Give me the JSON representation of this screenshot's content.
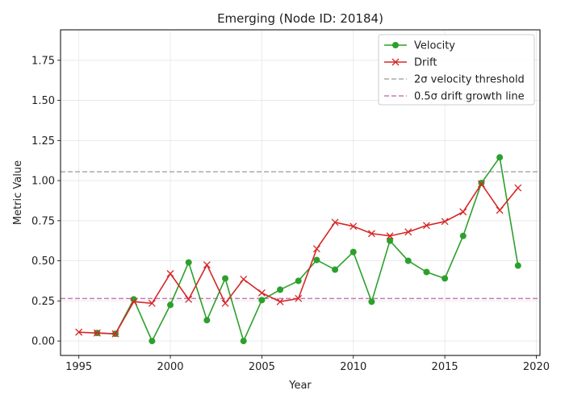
{
  "chart_data": {
    "type": "line",
    "title": "Emerging (Node ID: 20184)",
    "xlabel": "Year",
    "ylabel": "Metric Value",
    "xlim": [
      1994,
      2020.2
    ],
    "ylim": [
      -0.09,
      1.94
    ],
    "x_ticks": [
      1995,
      2000,
      2005,
      2010,
      2015,
      2020
    ],
    "y_ticks": [
      0.0,
      0.25,
      0.5,
      0.75,
      1.0,
      1.25,
      1.5,
      1.75
    ],
    "x_tick_labels": [
      "1995",
      "2000",
      "2005",
      "2010",
      "2015",
      "2020"
    ],
    "y_tick_labels": [
      "0.00",
      "0.25",
      "0.50",
      "0.75",
      "1.00",
      "1.25",
      "1.50",
      "1.75"
    ],
    "grid": true,
    "legend_position": "upper right",
    "series": [
      {
        "name": "Velocity",
        "color": "#2ca02c",
        "marker": "circle",
        "x": [
          1996,
          1997,
          1998,
          1999,
          2000,
          2001,
          2002,
          2003,
          2004,
          2005,
          2006,
          2007,
          2008,
          2009,
          2010,
          2011,
          2012,
          2013,
          2014,
          2015,
          2016,
          2017,
          2018,
          2019
        ],
        "y": [
          0.05,
          0.045,
          0.26,
          0.0,
          0.225,
          0.49,
          0.13,
          0.39,
          0.0,
          0.255,
          0.32,
          0.375,
          0.505,
          0.445,
          0.555,
          0.245,
          0.625,
          0.5,
          0.43,
          0.39,
          0.655,
          0.985,
          1.145,
          0.47
        ]
      },
      {
        "name": "Drift",
        "color": "#d62728",
        "marker": "x",
        "x": [
          1995,
          1996,
          1997,
          1998,
          1999,
          2000,
          2001,
          2002,
          2003,
          2004,
          2005,
          2006,
          2007,
          2008,
          2009,
          2010,
          2011,
          2012,
          2013,
          2014,
          2015,
          2016,
          2017,
          2018,
          2019
        ],
        "y": [
          0.055,
          0.05,
          0.045,
          0.245,
          0.235,
          0.42,
          0.26,
          0.475,
          0.235,
          0.385,
          0.3,
          0.245,
          0.265,
          0.575,
          0.74,
          0.715,
          0.67,
          0.655,
          0.68,
          0.72,
          0.745,
          0.805,
          0.98,
          0.815,
          0.955
        ]
      }
    ],
    "reference_lines": [
      {
        "name": "2σ velocity threshold",
        "y": 1.055,
        "color": "#aaaaaa",
        "style": "dashed"
      },
      {
        "name": "0.5σ drift growth line",
        "y": 0.265,
        "color": "#c879b5",
        "style": "dashed"
      }
    ]
  }
}
